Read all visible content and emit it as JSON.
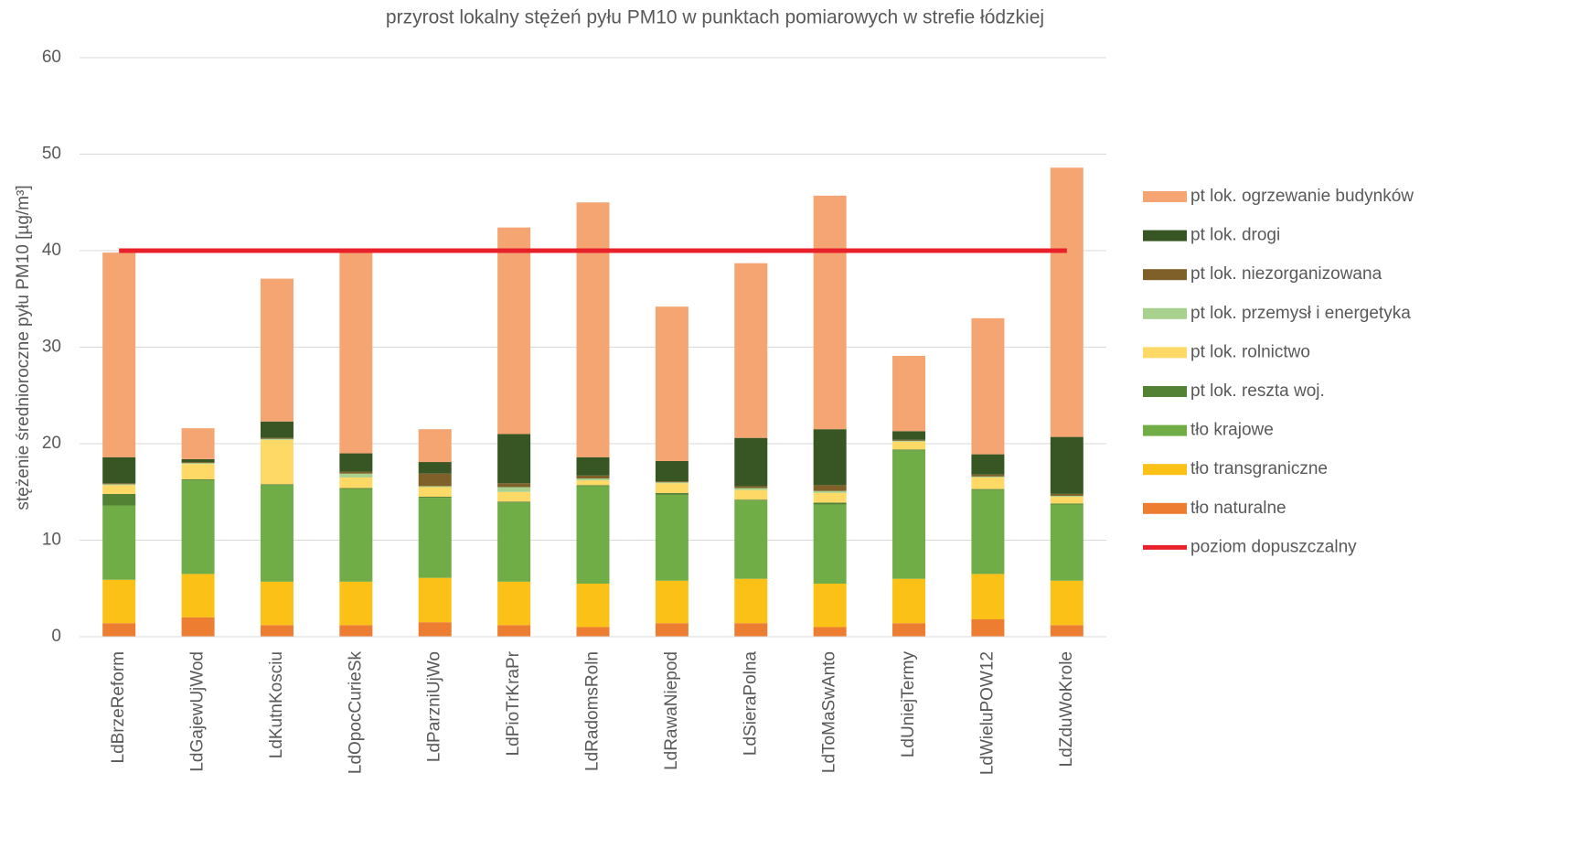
{
  "chart_data": {
    "type": "stacked-bar",
    "title": "przyrost lokalny stężeń pyłu PM10 w punktach pomiarowych w strefie łódzkiej",
    "y_label": "stężenie średnioroczne pyłu PM10 [µg/m³]",
    "categories": [
      "LdBrzeReform",
      "LdGajewUjWod",
      "LdKutnKosciu",
      "LdOpocCurieSk",
      "LdParzniUjWo",
      "LdPioTrKraPr",
      "LdRadomsRoln",
      "LdRawaNiepod",
      "LdSieraPolna",
      "LdToMaSwAnto",
      "LdUniejTermy",
      "LdWieluPOW12",
      "LdZduWoKrole"
    ],
    "series": [
      {
        "name": "tło naturalne",
        "color": "#ed7d31",
        "values": [
          1.4,
          2.0,
          1.2,
          1.2,
          1.5,
          1.2,
          1.0,
          1.4,
          1.4,
          1.0,
          1.4,
          1.8,
          1.2
        ]
      },
      {
        "name": "tło transgraniczne",
        "color": "#fcc117",
        "values": [
          4.5,
          4.5,
          4.5,
          4.5,
          4.6,
          4.5,
          4.5,
          4.4,
          4.6,
          4.5,
          4.6,
          4.7,
          4.6
        ]
      },
      {
        "name": "tło krajowe",
        "color": "#70ad47",
        "values": [
          7.7,
          9.7,
          10.0,
          9.6,
          8.3,
          8.2,
          10.1,
          8.9,
          8.1,
          8.2,
          13.3,
          8.7,
          7.9
        ]
      },
      {
        "name": "pt lok. reszta woj.",
        "color": "#548235",
        "values": [
          1.2,
          0.1,
          0.1,
          0.1,
          0.1,
          0.1,
          0.1,
          0.2,
          0.1,
          0.2,
          0.1,
          0.1,
          0.1
        ]
      },
      {
        "name": "pt lok. rolnictwo",
        "color": "#ffd966",
        "values": [
          0.9,
          1.6,
          4.6,
          1.1,
          1.0,
          1.0,
          0.5,
          1.0,
          1.0,
          1.0,
          0.8,
          1.2,
          0.7
        ]
      },
      {
        "name": "pt lok. przemysł i energetyka",
        "color": "#a9d18e",
        "values": [
          0.1,
          0.1,
          0.1,
          0.4,
          0.1,
          0.5,
          0.2,
          0.1,
          0.2,
          0.2,
          0.1,
          0.1,
          0.1
        ]
      },
      {
        "name": "pt lok. niezorganizowana",
        "color": "#7f6028",
        "values": [
          0.1,
          0.1,
          0.1,
          0.2,
          1.3,
          0.4,
          0.3,
          0.1,
          0.2,
          0.6,
          0.1,
          0.2,
          0.2
        ]
      },
      {
        "name": "pt lok. drogi",
        "color": "#375623",
        "values": [
          2.7,
          0.3,
          1.7,
          1.9,
          1.2,
          5.1,
          1.9,
          2.1,
          5.0,
          5.8,
          0.9,
          2.1,
          5.9
        ]
      },
      {
        "name": "pt lok. ogrzewanie budynków",
        "color": "#f4a572",
        "values": [
          21.2,
          3.2,
          14.8,
          21.0,
          3.4,
          21.4,
          26.4,
          16.0,
          18.1,
          24.2,
          7.8,
          14.1,
          27.9
        ]
      }
    ],
    "threshold": {
      "name": "poziom dopuszczalny",
      "value": 40,
      "color": "#e8202a"
    },
    "ylim": [
      0,
      60
    ],
    "yticks": [
      0,
      10,
      20,
      30,
      40,
      50,
      60
    ],
    "grid": true,
    "legend": "right"
  }
}
